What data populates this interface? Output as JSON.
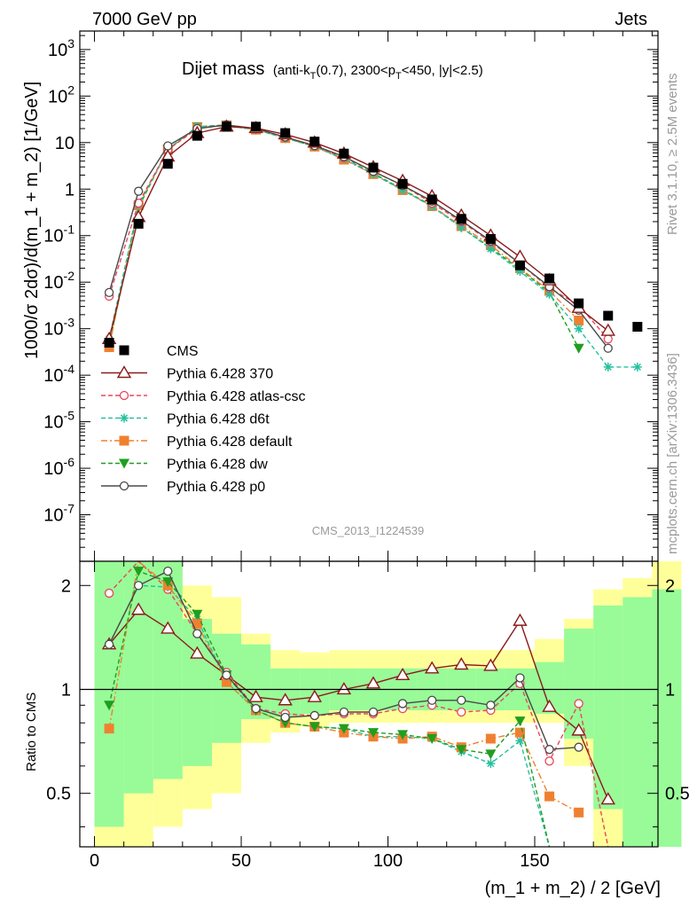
{
  "header": {
    "left": "7000 GeV pp",
    "right": "Jets"
  },
  "title": {
    "main": "Dijet mass",
    "cut": "(anti-k",
    "cut_sub": "T",
    "cut2": "(0.7), 2300<p",
    "cut2_sub": "T",
    "cut3": "<450, |y|<2.5)"
  },
  "side": {
    "rivet": "Rivet 3.1.10, ≥ 2.5M events",
    "mcplots": "mcplots.cern.ch [arXiv:1306.3436]"
  },
  "analysis_id": "CMS_2013_I1224539",
  "colors": {
    "CMS": "#000000",
    "p370": "#8b1a1a",
    "atlas": "#e8475a",
    "d6t": "#26c0a0",
    "default": "#f08030",
    "dw": "#1f9e1f",
    "p0": "#4a4a4a",
    "band_green": "#98fb98",
    "band_yellow": "#ffff99"
  },
  "chart_data": [
    {
      "type": "line",
      "panel": "main",
      "ylabel": "1000/σ 2dσ)/d(m_1 + m_2) [1/GeV]",
      "yscale": "log",
      "ylim": [
        1e-08,
        2500
      ],
      "xlim": [
        -5,
        192
      ],
      "y_ticks": [
        "10^3",
        "10^2",
        "10",
        "1",
        "10^-1",
        "10^-2",
        "10^-3",
        "10^-4",
        "10^-5",
        "10^-6",
        "10^-7"
      ],
      "x": [
        5,
        15,
        25,
        35,
        45,
        55,
        65,
        75,
        85,
        95,
        105,
        115,
        125,
        135,
        145,
        155,
        165,
        175,
        185
      ],
      "series": [
        {
          "name": "CMS",
          "key": "CMS",
          "marker": "square-filled",
          "dash": "none",
          "values": [
            0.0005,
            0.18,
            3.5,
            14,
            22,
            22,
            16,
            10.5,
            5.8,
            2.9,
            1.3,
            0.6,
            0.23,
            0.085,
            0.023,
            0.012,
            0.0035,
            0.0019,
            0.0011
          ]
        },
        {
          "name": "Pythia 6.428 370",
          "key": "p370",
          "marker": "triangle-open",
          "dash": "none",
          "values": [
            0.0006,
            0.25,
            5,
            16,
            22,
            20.5,
            15,
            10,
            5.8,
            2.95,
            1.5,
            0.7,
            0.27,
            0.1,
            0.035,
            0.011,
            0.0028,
            0.0009,
            null
          ]
        },
        {
          "name": "Pythia 6.428 atlas-csc",
          "key": "atlas",
          "marker": "circle-open",
          "dash": "5,3",
          "values": [
            0.005,
            0.5,
            7,
            20,
            24,
            20,
            13,
            8.5,
            4.8,
            2.4,
            1.2,
            0.5,
            0.2,
            0.073,
            0.025,
            0.0075,
            0.0032,
            0.0006,
            null
          ]
        },
        {
          "name": "Pythia 6.428 d6t",
          "key": "d6t",
          "marker": "star",
          "dash": "5,3",
          "values": [
            0.0006,
            0.45,
            7,
            22,
            23,
            19,
            12.5,
            8.2,
            4.5,
            2.1,
            0.95,
            0.42,
            0.15,
            0.052,
            0.017,
            0.0055,
            0.001,
            0.00015,
            0.00015
          ]
        },
        {
          "name": "Pythia 6.428 default",
          "key": "default",
          "marker": "square-filled",
          "dash": "7,3,2,3",
          "values": [
            0.0004,
            0.45,
            7,
            21,
            23,
            19,
            12.5,
            8.2,
            4.3,
            2.1,
            0.95,
            0.43,
            0.16,
            0.062,
            0.02,
            0.0065,
            0.0015,
            null,
            null
          ]
        },
        {
          "name": "Pythia 6.428 dw",
          "key": "dw",
          "marker": "triangle-down-filled",
          "dash": "5,3",
          "values": [
            0.00045,
            0.4,
            7.2,
            22,
            24,
            19,
            12.5,
            8.3,
            4.5,
            2.2,
            0.98,
            0.44,
            0.15,
            0.055,
            0.019,
            0.006,
            0.00038,
            null,
            null
          ]
        },
        {
          "name": "Pythia 6.428 p0",
          "key": "p0",
          "marker": "circle-open",
          "dash": "none",
          "values": [
            0.006,
            0.9,
            8.5,
            20,
            24,
            20,
            13.2,
            8.6,
            5,
            2.4,
            1.2,
            0.55,
            0.21,
            0.077,
            0.025,
            0.008,
            0.0025,
            0.00038,
            null
          ]
        }
      ],
      "legend_position": "mid-left"
    },
    {
      "type": "line",
      "panel": "ratio",
      "ylabel": "Ratio to CMS",
      "xlabel": "(m_1 + m_2) / 2 [GeV]",
      "ylim": [
        0.35,
        2.35
      ],
      "xlim": [
        -5,
        192
      ],
      "x_ticks": [
        0,
        50,
        100,
        150
      ],
      "y_ticks": [
        0.5,
        1,
        2
      ],
      "bands": {
        "edges": [
          0,
          10,
          20,
          30,
          40,
          50,
          60,
          70,
          80,
          90,
          100,
          110,
          120,
          130,
          140,
          150,
          160,
          170,
          180,
          190
        ],
        "green": [
          [
            0.4,
            2.35
          ],
          [
            0.5,
            2.35
          ],
          [
            0.55,
            2.35
          ],
          [
            0.6,
            1.6
          ],
          [
            0.7,
            1.45
          ],
          [
            0.82,
            1.35
          ],
          [
            0.83,
            1.15
          ],
          [
            0.85,
            1.15
          ],
          [
            0.87,
            1.15
          ],
          [
            0.87,
            1.15
          ],
          [
            0.87,
            1.15
          ],
          [
            0.87,
            1.15
          ],
          [
            0.87,
            1.15
          ],
          [
            0.87,
            1.15
          ],
          [
            0.87,
            1.15
          ],
          [
            0.85,
            1.2
          ],
          [
            0.72,
            1.5
          ],
          [
            0.45,
            1.75
          ],
          [
            0.35,
            1.85
          ],
          [
            0.35,
            1.95
          ]
        ],
        "yellow": [
          [
            0.35,
            2.35
          ],
          [
            0.35,
            2.35
          ],
          [
            0.4,
            2.35
          ],
          [
            0.45,
            2.0
          ],
          [
            0.5,
            1.85
          ],
          [
            0.7,
            1.45
          ],
          [
            0.75,
            1.3
          ],
          [
            0.78,
            1.28
          ],
          [
            0.8,
            1.3
          ],
          [
            0.8,
            1.3
          ],
          [
            0.8,
            1.3
          ],
          [
            0.8,
            1.3
          ],
          [
            0.8,
            1.3
          ],
          [
            0.8,
            1.3
          ],
          [
            0.8,
            1.3
          ],
          [
            0.8,
            1.4
          ],
          [
            0.6,
            1.6
          ],
          [
            0.35,
            1.95
          ],
          [
            0.35,
            2.1
          ],
          [
            0.35,
            2.35
          ]
        ]
      },
      "series": [
        {
          "name": "Pythia 6.428 370",
          "key": "p370",
          "values": [
            1.35,
            1.7,
            1.5,
            1.27,
            1.1,
            0.95,
            0.93,
            0.95,
            1.0,
            1.04,
            1.1,
            1.15,
            1.18,
            1.17,
            1.58,
            0.89,
            0.76,
            0.48,
            null
          ]
        },
        {
          "name": "Pythia 6.428 atlas-csc",
          "key": "atlas",
          "values": [
            1.9,
            2.35,
            1.95,
            1.45,
            1.12,
            0.88,
            0.85,
            0.84,
            0.85,
            0.85,
            0.88,
            0.9,
            0.86,
            0.87,
            1.04,
            0.62,
            0.91,
            0.35,
            null
          ]
        },
        {
          "name": "Pythia 6.428 d6t",
          "key": "d6t",
          "values": [
            1.35,
            2.0,
            1.98,
            1.6,
            1.05,
            0.87,
            0.8,
            0.78,
            0.77,
            0.73,
            0.73,
            0.72,
            0.66,
            0.61,
            0.71,
            0.35,
            null,
            null,
            null
          ]
        },
        {
          "name": "Pythia 6.428 default",
          "key": "default",
          "values": [
            0.77,
            2.35,
            2.0,
            1.55,
            1.05,
            0.87,
            0.8,
            0.78,
            0.75,
            0.73,
            0.72,
            0.73,
            0.68,
            0.72,
            0.75,
            0.49,
            0.44,
            null,
            null
          ]
        },
        {
          "name": "Pythia 6.428 dw",
          "key": "dw",
          "values": [
            0.9,
            2.2,
            2.05,
            1.65,
            1.1,
            0.87,
            0.8,
            0.78,
            0.77,
            0.75,
            0.74,
            0.72,
            0.67,
            0.65,
            0.81,
            0.35,
            null,
            null,
            null
          ]
        },
        {
          "name": "Pythia 6.428 p0",
          "key": "p0",
          "values": [
            1.35,
            2.0,
            2.2,
            1.45,
            1.1,
            0.88,
            0.83,
            0.84,
            0.86,
            0.86,
            0.91,
            0.93,
            0.93,
            0.9,
            1.08,
            0.67,
            0.68,
            null,
            null
          ]
        }
      ]
    }
  ]
}
